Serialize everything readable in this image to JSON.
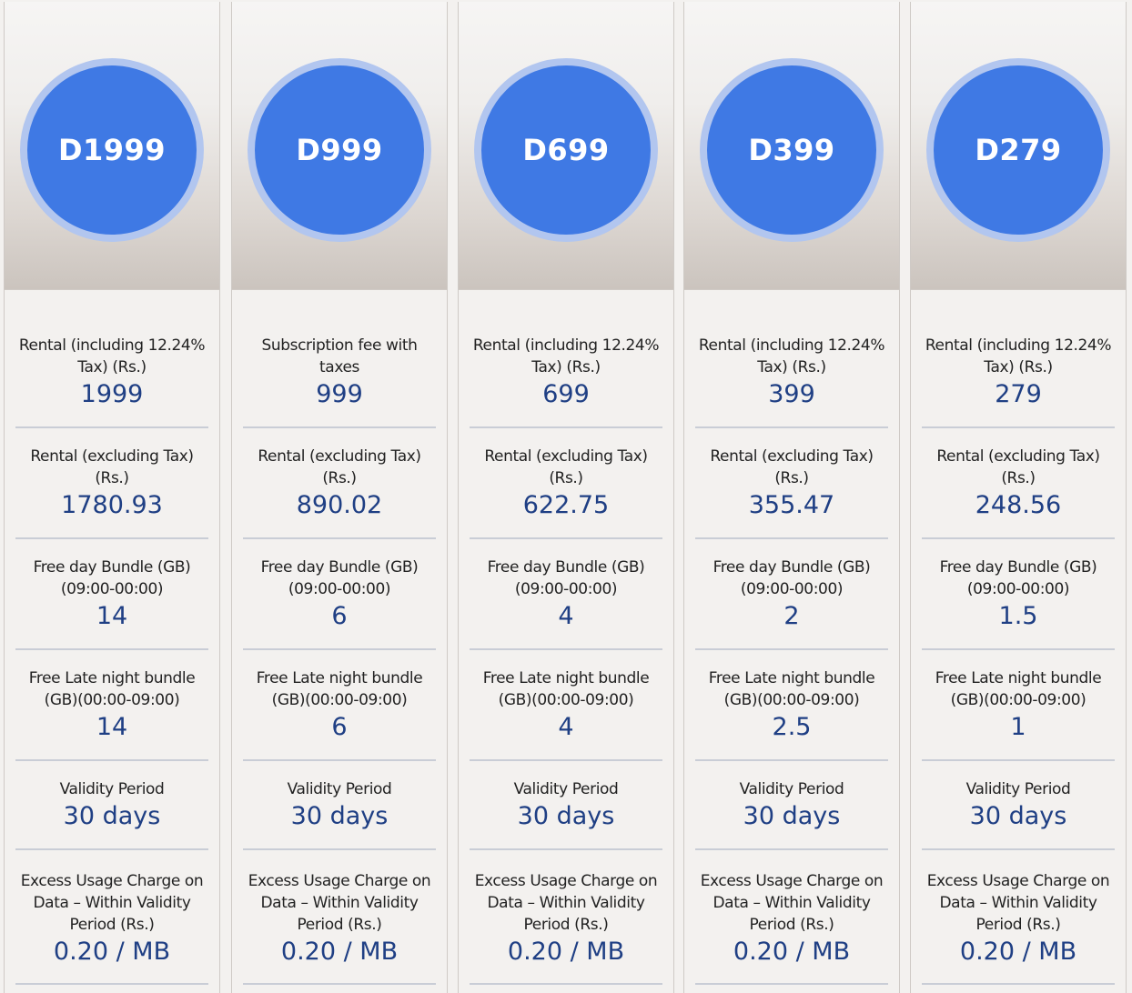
{
  "plans": [
    {
      "name": "D1999",
      "rows": [
        {
          "label": "Rental (including 12.24% Tax) (Rs.)",
          "value": "1999"
        },
        {
          "label": "Rental (excluding Tax) (Rs.)",
          "value": "1780.93"
        },
        {
          "label": "Free day Bundle (GB) (09:00-00:00)",
          "value": "14"
        },
        {
          "label": "Free Late night bundle (GB)(00:00-09:00)",
          "value": "14"
        },
        {
          "label": "Validity Period",
          "value": "30 days"
        },
        {
          "label": "Excess Usage Charge on Data – Within Validity Period (Rs.)",
          "value": "0.20 / MB"
        }
      ]
    },
    {
      "name": "D999",
      "rows": [
        {
          "label": "Subscription fee with taxes",
          "value": "999"
        },
        {
          "label": "Rental (excluding Tax) (Rs.)",
          "value": "890.02"
        },
        {
          "label": "Free day Bundle (GB) (09:00-00:00)",
          "value": "6"
        },
        {
          "label": "Free Late night bundle (GB)(00:00-09:00)",
          "value": "6"
        },
        {
          "label": "Validity Period",
          "value": "30 days"
        },
        {
          "label": "Excess Usage Charge on Data – Within Validity Period (Rs.)",
          "value": "0.20 / MB"
        }
      ]
    },
    {
      "name": "D699",
      "rows": [
        {
          "label": "Rental (including 12.24% Tax) (Rs.)",
          "value": "699"
        },
        {
          "label": "Rental (excluding Tax) (Rs.)",
          "value": "622.75"
        },
        {
          "label": "Free day Bundle (GB) (09:00-00:00)",
          "value": "4"
        },
        {
          "label": "Free Late night bundle (GB)(00:00-09:00)",
          "value": "4"
        },
        {
          "label": "Validity Period",
          "value": "30 days"
        },
        {
          "label": "Excess Usage Charge on Data – Within Validity Period (Rs.)",
          "value": "0.20 / MB"
        }
      ]
    },
    {
      "name": "D399",
      "rows": [
        {
          "label": "Rental (including 12.24% Tax) (Rs.)",
          "value": "399"
        },
        {
          "label": "Rental (excluding Tax) (Rs.)",
          "value": "355.47"
        },
        {
          "label": "Free day Bundle (GB) (09:00-00:00)",
          "value": "2"
        },
        {
          "label": "Free Late night bundle (GB)(00:00-09:00)",
          "value": "2.5"
        },
        {
          "label": "Validity Period",
          "value": "30 days"
        },
        {
          "label": "Excess Usage Charge on Data – Within Validity Period (Rs.)",
          "value": "0.20 / MB"
        }
      ]
    },
    {
      "name": "D279",
      "rows": [
        {
          "label": "Rental (including 12.24% Tax) (Rs.)",
          "value": "279"
        },
        {
          "label": "Rental (excluding Tax) (Rs.)",
          "value": "248.56"
        },
        {
          "label": "Free day Bundle (GB) (09:00-00:00)",
          "value": "1.5"
        },
        {
          "label": "Free Late night bundle (GB)(00:00-09:00)",
          "value": "1"
        },
        {
          "label": "Validity Period",
          "value": "30 days"
        },
        {
          "label": "Excess Usage Charge on Data – Within Validity Period (Rs.)",
          "value": "0.20 / MB"
        }
      ]
    }
  ]
}
